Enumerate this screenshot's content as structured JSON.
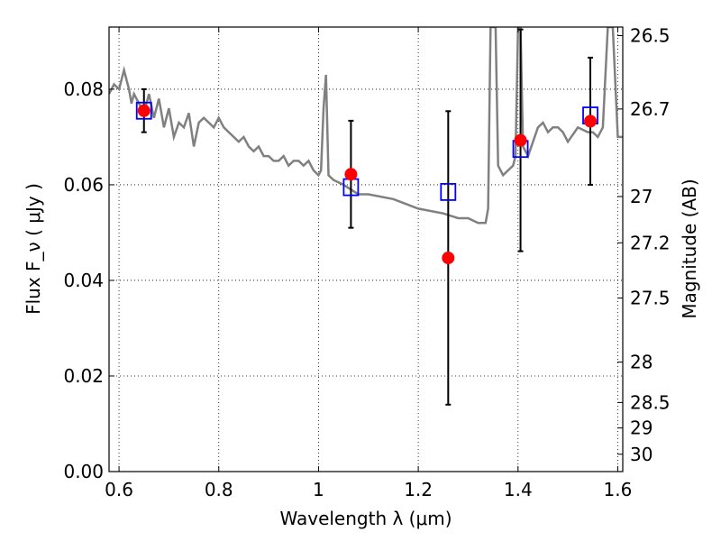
{
  "chart_data": {
    "type": "scatter",
    "xlabel": "Wavelength  λ (μm)",
    "ylabel": "Flux  F_ν  ( μJy )",
    "ylabel_right": "Magnitude (AB)",
    "xlim": [
      0.58,
      1.61
    ],
    "ylim": [
      0.0,
      0.093
    ],
    "grid": true,
    "x_ticks": [
      {
        "value": 0.6,
        "label": "0.6"
      },
      {
        "value": 0.8,
        "label": "0.8"
      },
      {
        "value": 1.0,
        "label": "1"
      },
      {
        "value": 1.2,
        "label": "1.2"
      },
      {
        "value": 1.4,
        "label": "1.4"
      },
      {
        "value": 1.6,
        "label": "1.6"
      }
    ],
    "y_ticks": [
      {
        "value": 0.0,
        "label": "0.00"
      },
      {
        "value": 0.02,
        "label": "0.02"
      },
      {
        "value": 0.04,
        "label": "0.04"
      },
      {
        "value": 0.06,
        "label": "0.06"
      },
      {
        "value": 0.08,
        "label": "0.08"
      }
    ],
    "y2_ticks": [
      {
        "value": 26.5,
        "label": "26.5"
      },
      {
        "value": 26.7,
        "label": "26.7"
      },
      {
        "value": 27.0,
        "label": "27"
      },
      {
        "value": 27.2,
        "label": "27.2"
      },
      {
        "value": 27.5,
        "label": "27.5"
      },
      {
        "value": 28.0,
        "label": "28"
      },
      {
        "value": 28.5,
        "label": "28.5"
      },
      {
        "value": 29.0,
        "label": "29"
      },
      {
        "value": 30.0,
        "label": "30"
      }
    ],
    "model_spectrum": {
      "color": "#808080",
      "x": [
        0.58,
        0.59,
        0.6,
        0.61,
        0.62,
        0.625,
        0.63,
        0.64,
        0.65,
        0.66,
        0.67,
        0.68,
        0.69,
        0.7,
        0.71,
        0.72,
        0.73,
        0.74,
        0.75,
        0.76,
        0.77,
        0.78,
        0.79,
        0.8,
        0.81,
        0.82,
        0.83,
        0.84,
        0.85,
        0.86,
        0.87,
        0.88,
        0.89,
        0.9,
        0.91,
        0.92,
        0.93,
        0.94,
        0.95,
        0.96,
        0.97,
        0.98,
        0.99,
        1.0,
        1.005,
        1.01,
        1.015,
        1.02,
        1.03,
        1.05,
        1.08,
        1.1,
        1.15,
        1.2,
        1.25,
        1.28,
        1.3,
        1.32,
        1.335,
        1.34,
        1.345,
        1.35,
        1.355,
        1.36,
        1.37,
        1.38,
        1.39,
        1.395,
        1.4,
        1.405,
        1.41,
        1.42,
        1.43,
        1.44,
        1.45,
        1.46,
        1.47,
        1.48,
        1.49,
        1.5,
        1.52,
        1.54,
        1.55,
        1.56,
        1.57,
        1.58,
        1.59,
        1.6,
        1.61
      ],
      "y": [
        0.079,
        0.081,
        0.08,
        0.084,
        0.08,
        0.077,
        0.079,
        0.077,
        0.075,
        0.079,
        0.074,
        0.078,
        0.072,
        0.076,
        0.07,
        0.073,
        0.072,
        0.075,
        0.068,
        0.073,
        0.074,
        0.073,
        0.072,
        0.074,
        0.072,
        0.071,
        0.07,
        0.069,
        0.07,
        0.068,
        0.067,
        0.068,
        0.066,
        0.066,
        0.065,
        0.065,
        0.066,
        0.064,
        0.065,
        0.065,
        0.064,
        0.065,
        0.063,
        0.062,
        0.063,
        0.076,
        0.083,
        0.062,
        0.061,
        0.06,
        0.058,
        0.058,
        0.057,
        0.055,
        0.054,
        0.053,
        0.053,
        0.052,
        0.052,
        0.055,
        0.093,
        0.093,
        0.093,
        0.064,
        0.062,
        0.063,
        0.064,
        0.066,
        0.093,
        0.093,
        0.068,
        0.066,
        0.069,
        0.072,
        0.073,
        0.071,
        0.072,
        0.072,
        0.071,
        0.069,
        0.072,
        0.071,
        0.071,
        0.07,
        0.072,
        0.093,
        0.093,
        0.07,
        0.07
      ]
    },
    "observed": {
      "color": "#ff0000",
      "points": [
        {
          "x": 0.65,
          "y": 0.0755,
          "err": 0.0045
        },
        {
          "x": 1.065,
          "y": 0.0622,
          "err": 0.0112
        },
        {
          "x": 1.26,
          "y": 0.0447,
          "err": 0.0307
        },
        {
          "x": 1.405,
          "y": 0.0693,
          "err": 0.0232
        },
        {
          "x": 1.545,
          "y": 0.0733,
          "err": 0.0133
        }
      ]
    },
    "model_photometry": {
      "color": "#0000ff",
      "points": [
        {
          "x": 0.65,
          "y": 0.0755
        },
        {
          "x": 1.065,
          "y": 0.0595
        },
        {
          "x": 1.26,
          "y": 0.0585
        },
        {
          "x": 1.405,
          "y": 0.0675
        },
        {
          "x": 1.545,
          "y": 0.0745
        }
      ]
    },
    "mag_axis_color": "#000000"
  }
}
